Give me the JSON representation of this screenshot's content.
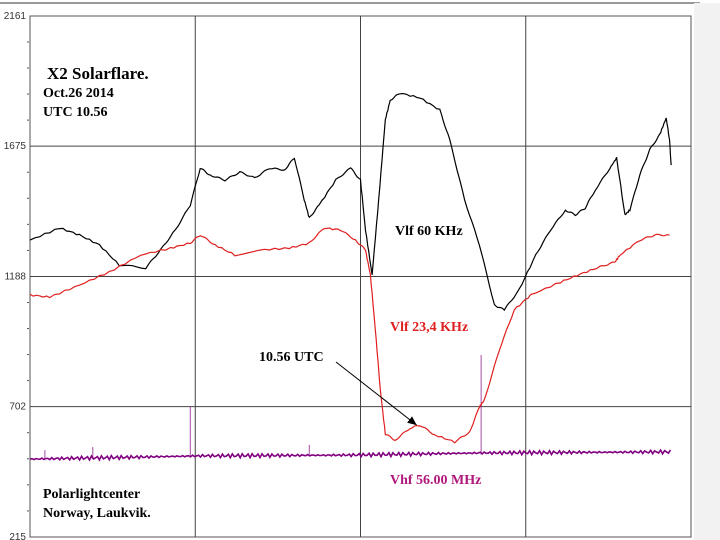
{
  "chart_data": {
    "type": "line",
    "title": "X2 Solarflare.",
    "subtitle_lines": [
      "Oct.26 2014",
      "UTC 10.56"
    ],
    "credit_lines": [
      "Polarlightcenter",
      "Norway, Laukvik."
    ],
    "xlabel": "",
    "ylabel": "",
    "xlim": [
      0,
      400
    ],
    "ylim": [
      215,
      2161
    ],
    "y_ticks": [
      "2161",
      "1675",
      "1188",
      "702",
      "215"
    ],
    "y_tick_values": [
      2161,
      1675,
      1188,
      702,
      215
    ],
    "x_grid_values": [
      100,
      200,
      300
    ],
    "grid": true,
    "series": [
      {
        "name": "Vlf 60 KHz",
        "color": "#000000",
        "x": [
          0,
          18,
          30,
          42,
          54,
          70,
          79,
          88,
          97,
          103,
          109,
          118,
          127,
          136,
          145,
          154,
          160,
          166,
          169,
          175,
          185,
          194,
          200,
          203,
          207,
          211,
          215,
          218,
          224,
          236,
          248,
          254,
          263,
          272,
          281,
          287,
          296,
          306,
          315,
          324,
          330,
          336,
          342,
          351,
          355,
          360,
          363,
          369,
          375,
          381,
          385,
          387,
          388
        ],
        "y": [
          1324,
          1369,
          1343,
          1306,
          1231,
          1220,
          1287,
          1362,
          1455,
          1593,
          1567,
          1548,
          1578,
          1556,
          1593,
          1586,
          1631,
          1474,
          1407,
          1455,
          1548,
          1593,
          1548,
          1362,
          1194,
          1474,
          1773,
          1847,
          1873,
          1855,
          1810,
          1698,
          1474,
          1306,
          1082,
          1063,
          1138,
          1268,
          1362,
          1436,
          1418,
          1444,
          1511,
          1593,
          1631,
          1418,
          1436,
          1567,
          1661,
          1717,
          1780,
          1698,
          1604
        ]
      },
      {
        "name": "Vlf 23,4 KHz",
        "color": "#e02020",
        "x": [
          0,
          12,
          30,
          48,
          67,
          85,
          97,
          103,
          112,
          124,
          139,
          157,
          169,
          178,
          188,
          197,
          203,
          206,
          209,
          212,
          215,
          221,
          230,
          236,
          245,
          257,
          266,
          272,
          275,
          284,
          293,
          303,
          321,
          333,
          345,
          354,
          357,
          369,
          378,
          387
        ],
        "y": [
          1119,
          1111,
          1156,
          1205,
          1268,
          1294,
          1313,
          1343,
          1306,
          1268,
          1287,
          1294,
          1313,
          1369,
          1362,
          1324,
          1287,
          1194,
          988,
          764,
          600,
          577,
          622,
          633,
          596,
          570,
          607,
          701,
          727,
          914,
          1063,
          1119,
          1167,
          1197,
          1224,
          1242,
          1268,
          1324,
          1343,
          1343
        ]
      },
      {
        "name": "Vhf 56.00 MHz",
        "color": "#800080",
        "label_color": "#b0177a",
        "x": [
          0,
          9,
          38,
          97,
          169,
          273,
          387
        ],
        "y": [
          506,
          540,
          551,
          701,
          559,
          895,
          533
        ],
        "baseline": [
          [
            0,
            506
          ],
          [
            103,
            518
          ],
          [
            194,
            521
          ],
          [
            272,
            529
          ],
          [
            387,
            533
          ]
        ],
        "spikes": [
          [
            9,
            540
          ],
          [
            38,
            551
          ],
          [
            97,
            701
          ],
          [
            169,
            559
          ],
          [
            273,
            895
          ]
        ]
      }
    ],
    "annotations": [
      {
        "text": "10.56 UTC",
        "target_x": 234,
        "target_y": 633,
        "color": "#000000"
      }
    ]
  }
}
